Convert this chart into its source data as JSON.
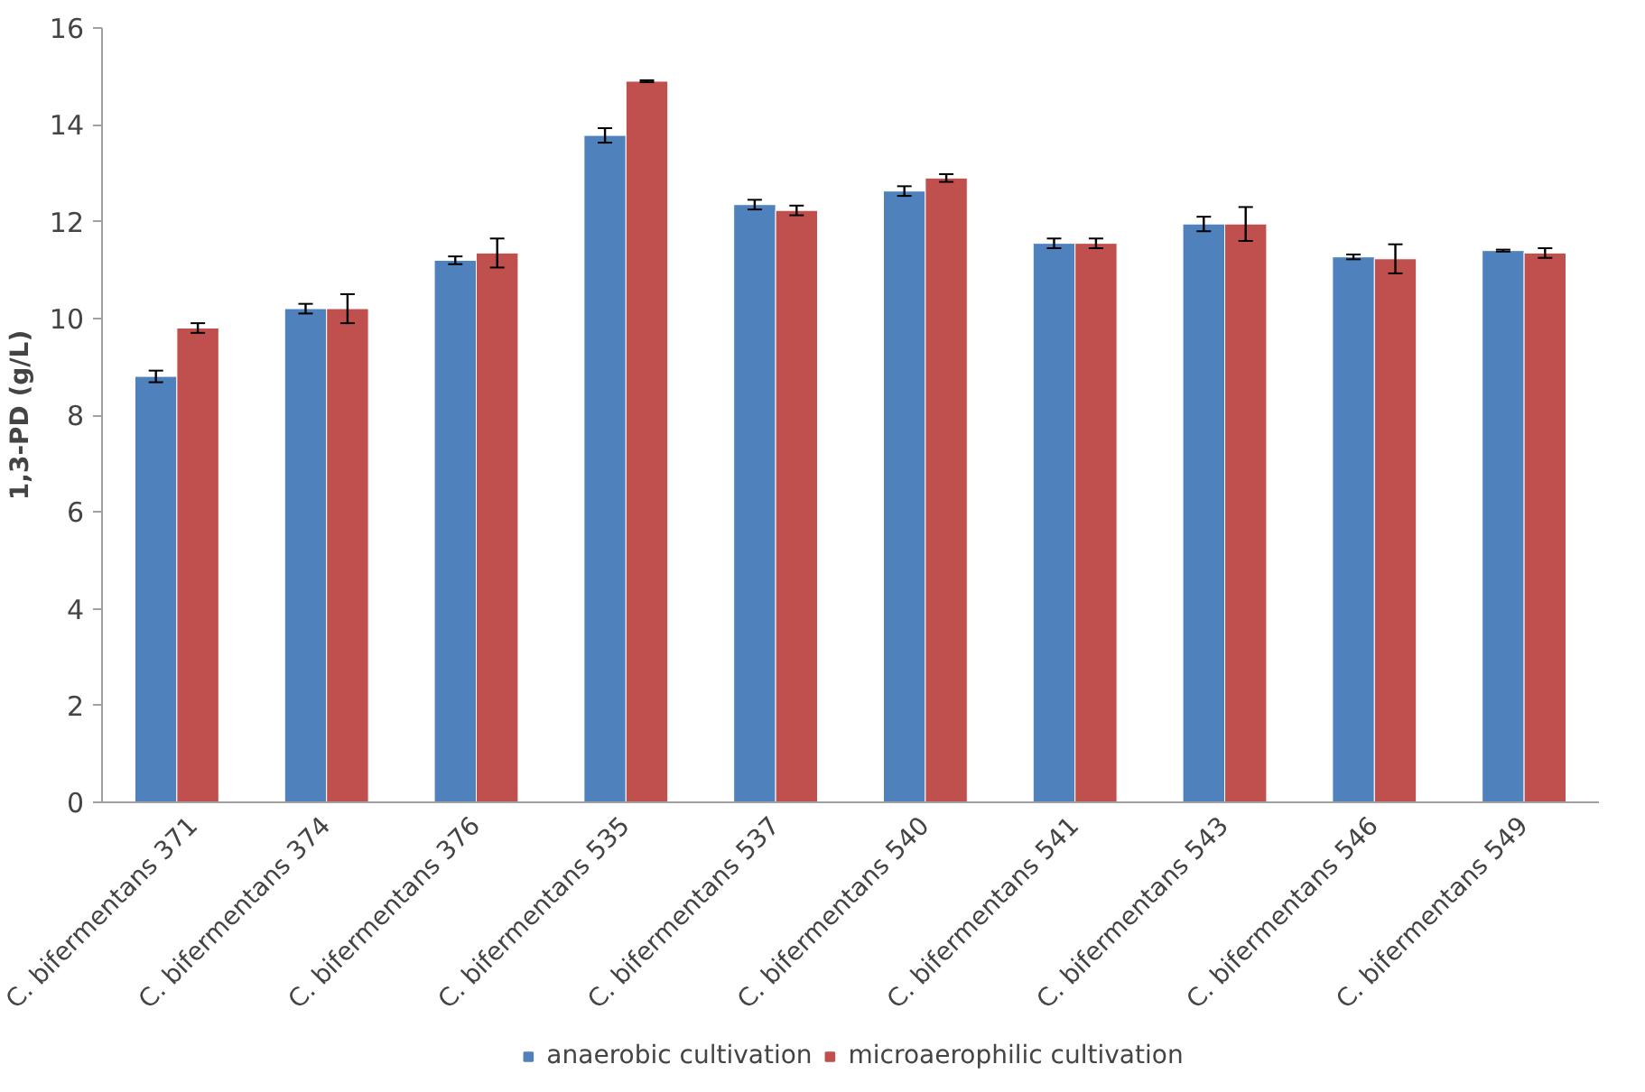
{
  "chart_data": {
    "type": "bar",
    "ylabel": "1,3-PD (g/L)",
    "categories": [
      "C. bifermentans 371",
      "C. bifermentans 374",
      "C. bifermentans 376",
      "C. bifermentans 535",
      "C. bifermentans 537",
      "C. bifermentans 540",
      "C. bifermentans 541",
      "C. bifermentans 543",
      "C. bifermentans 546",
      "C. bifermentans 549"
    ],
    "series": [
      {
        "name": "anaerobic cultivation",
        "color": "#4f81bd",
        "values": [
          8.8,
          10.2,
          11.2,
          13.78,
          12.35,
          12.63,
          11.55,
          11.95,
          11.27,
          11.4
        ],
        "errors": [
          0.12,
          0.1,
          0.08,
          0.15,
          0.1,
          0.1,
          0.1,
          0.15,
          0.05,
          0.02
        ]
      },
      {
        "name": "microaerophilic cultivation",
        "color": "#c0504d",
        "values": [
          9.8,
          10.2,
          11.35,
          14.9,
          12.23,
          12.9,
          11.55,
          11.95,
          11.23,
          11.35
        ],
        "errors": [
          0.1,
          0.3,
          0.3,
          0.02,
          0.1,
          0.08,
          0.1,
          0.35,
          0.3,
          0.1
        ]
      }
    ],
    "ylim": [
      0,
      16
    ],
    "yticks": [
      0,
      2,
      4,
      6,
      8,
      10,
      12,
      14,
      16
    ],
    "grid": false,
    "legend": "bottom"
  }
}
